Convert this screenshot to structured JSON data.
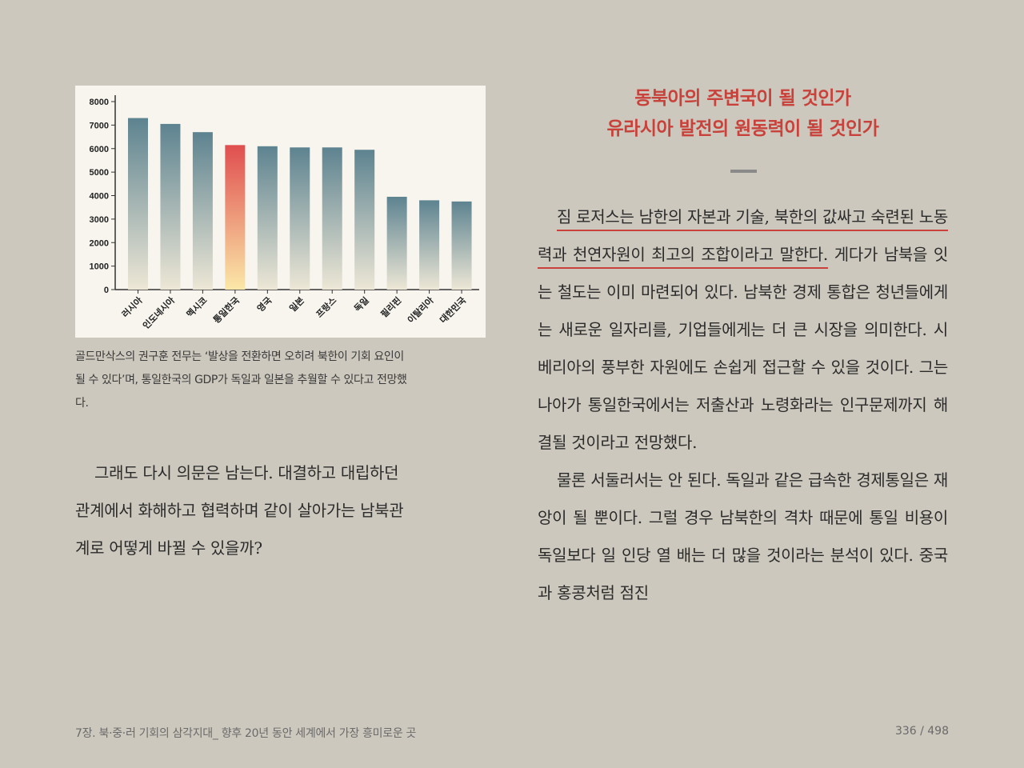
{
  "chart_data": {
    "type": "bar",
    "categories": [
      "러시아",
      "인도네시아",
      "멕시코",
      "통일한국",
      "영국",
      "일본",
      "프랑스",
      "독일",
      "필리핀",
      "이탈리아",
      "대한민국"
    ],
    "values": [
      7300,
      7050,
      6700,
      6150,
      6100,
      6050,
      6050,
      5950,
      3950,
      3800,
      3750
    ],
    "highlight_index": 3,
    "y_ticks": [
      "8000",
      "7000",
      "6000",
      "5000",
      "4000",
      "3000",
      "2000",
      "1000",
      "0"
    ],
    "ylim": [
      0,
      8000
    ],
    "grid": false,
    "colors": {
      "bar_top": "#5d8390",
      "bar_bottom": "#ede7d6",
      "highlight_top": "#e04e4f",
      "highlight_bottom": "#fbe8a8"
    }
  },
  "caption": {
    "lines": [
      "골드만삭스의 권구훈 전무는 ‘발상을 전환하면 오히려 북한이 기회 요인이",
      "될 수 있다’며, 통일한국의 GDP가 독일과 일본을 추월할 수 있다고 전망했",
      "다."
    ]
  },
  "left_text": {
    "lines": [
      "그래도 다시 의문은 남는다. 대결하고 대립하던",
      "관계에서 화해하고 협력하며 같이 살아가는 남북관",
      "계로 어떻게 바뀔 수 있을까?"
    ]
  },
  "heading": {
    "line1": "동북아의 주변국이 될 것인가",
    "line2": "유라시아 발전의 원동력이 될 것인가"
  },
  "right_text": {
    "para1_underlined": "짐 로저스는 남한의 자본과 기술, 북한의 값싸고 숙련된 노동력과 천연자원이 최고의 조합이라고 말한다.",
    "para1_rest": " 게다가 남북을 잇는 철도는 이미 마련되어 있다. 남북한 경제 통합은 청년들에게는 새로운 일자리를, 기업들에게는 더 큰 시장을 의미한다. 시베리아의 풍부한 자원에도 손쉽게 접근할 수 있을 것이다. 그는 나아가 통일한국에서는 저출산과 노령화라는 인구문제까지 해결될 것이라고 전망했다.",
    "para2": "물론 서둘러서는 안 된다. 독일과 같은 급속한 경제통일은 재앙이 될 뿐이다. 그럴 경우 남북한의 격차 때문에 통일 비용이 독일보다 일 인당 열 배는 더 많을 것이라는 분석이 있다. 중국과 홍콩처럼 점진"
  },
  "footer": {
    "chapter": "7장. 북·중·러 기회의 삼각지대_ 향후 20년 동안 세계에서 가장 흥미로운 곳",
    "page": "336 / 498"
  }
}
